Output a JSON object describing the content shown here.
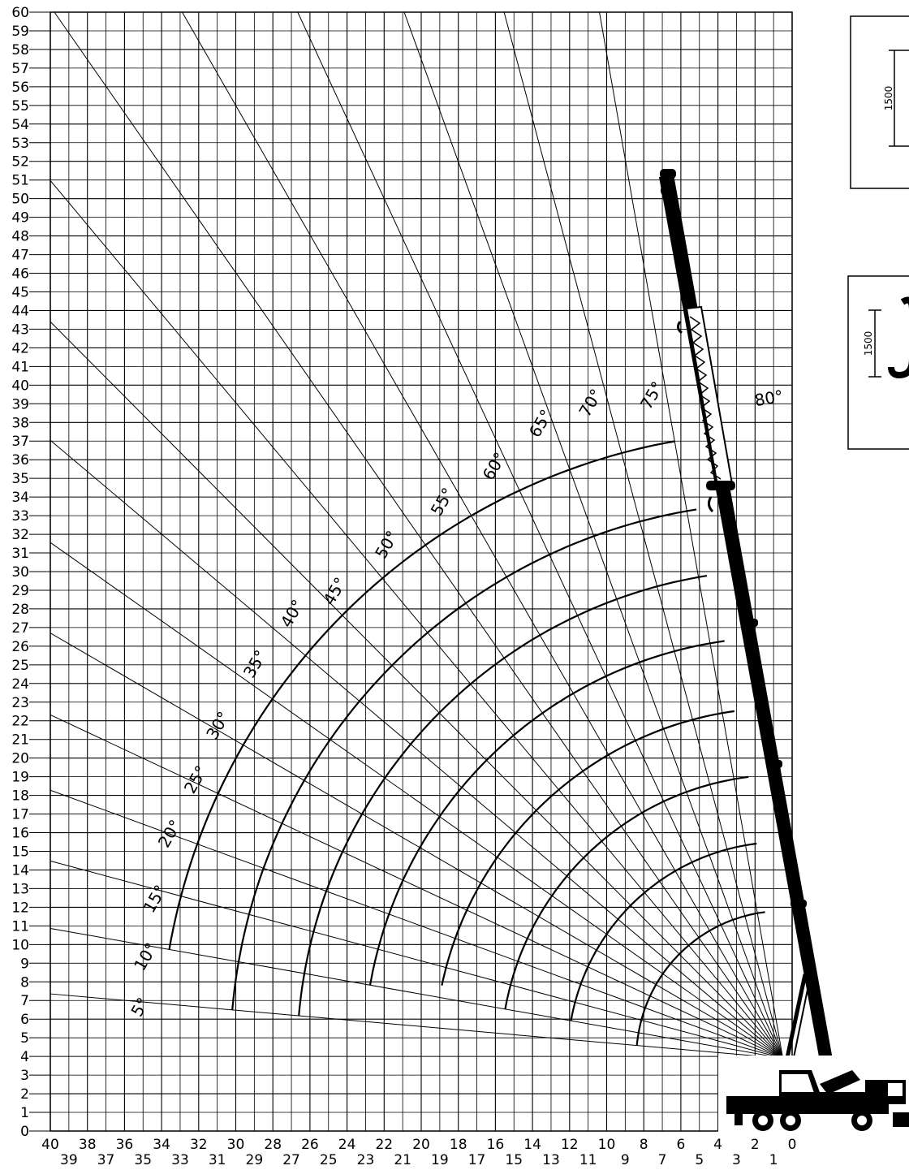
{
  "chart_data": {
    "type": "line",
    "xlim": [
      40,
      0
    ],
    "ylim": [
      0,
      60
    ],
    "grid": true,
    "x_ticks": [
      40,
      39,
      38,
      37,
      36,
      35,
      34,
      33,
      32,
      31,
      30,
      29,
      28,
      27,
      26,
      25,
      24,
      23,
      22,
      21,
      20,
      19,
      18,
      17,
      16,
      15,
      14,
      13,
      12,
      11,
      10,
      9,
      8,
      7,
      6,
      5,
      4,
      3,
      2,
      1,
      0
    ],
    "y_ticks": [
      0,
      1,
      2,
      3,
      4,
      5,
      6,
      7,
      8,
      9,
      10,
      11,
      12,
      13,
      14,
      15,
      16,
      17,
      18,
      19,
      20,
      21,
      22,
      23,
      24,
      25,
      26,
      27,
      28,
      29,
      30,
      31,
      32,
      33,
      34,
      35,
      36,
      37,
      38,
      39,
      40,
      41,
      42,
      43,
      44,
      45,
      46,
      47,
      48,
      49,
      50,
      51,
      52,
      53,
      54,
      55,
      56,
      57,
      58,
      59,
      60
    ],
    "pivot": {
      "x": 0.5,
      "y": 3.9
    },
    "angle_lines": [
      {
        "label": "5°",
        "angle": 5,
        "label_x": 34.9,
        "label_y": 6.5
      },
      {
        "label": "10°",
        "angle": 10,
        "label_x": 34.6,
        "label_y": 9.2
      },
      {
        "label": "15°",
        "angle": 15,
        "label_x": 34.1,
        "label_y": 12.3
      },
      {
        "label": "20°",
        "angle": 20,
        "label_x": 33.3,
        "label_y": 15.8
      },
      {
        "label": "25°",
        "angle": 25,
        "label_x": 31.9,
        "label_y": 18.7
      },
      {
        "label": "30°",
        "angle": 30,
        "label_x": 30.7,
        "label_y": 21.6
      },
      {
        "label": "35°",
        "angle": 35,
        "label_x": 28.7,
        "label_y": 24.9
      },
      {
        "label": "40°",
        "angle": 40,
        "label_x": 26.7,
        "label_y": 27.6
      },
      {
        "label": "45°",
        "angle": 45,
        "label_x": 24.4,
        "label_y": 28.8
      },
      {
        "label": "50°",
        "angle": 50,
        "label_x": 21.6,
        "label_y": 31.3
      },
      {
        "label": "55°",
        "angle": 55,
        "label_x": 18.6,
        "label_y": 33.6
      },
      {
        "label": "60°",
        "angle": 60,
        "label_x": 15.8,
        "label_y": 35.5
      },
      {
        "label": "65°",
        "angle": 65,
        "label_x": 13.3,
        "label_y": 37.8
      },
      {
        "label": "70°",
        "angle": 70,
        "label_x": 10.6,
        "label_y": 38.9
      },
      {
        "label": "75°",
        "angle": 75,
        "label_x": 7.3,
        "label_y": 39.3
      },
      {
        "label": "80°",
        "angle": 80,
        "label_x": 1.2,
        "label_y": 39.0
      }
    ],
    "boom_arcs": [
      {
        "radius": 7.9,
        "start_angle": 5,
        "end_angle": 83
      },
      {
        "radius": 11.6,
        "start_angle": 10,
        "end_angle": 83
      },
      {
        "radius": 15.2,
        "start_angle": 10,
        "end_angle": 83
      },
      {
        "radius": 18.8,
        "start_angle": 12,
        "end_angle": 82
      },
      {
        "radius": 22.6,
        "start_angle": 10,
        "end_angle": 82
      },
      {
        "radius": 26.2,
        "start_angle": 5,
        "end_angle": 81
      },
      {
        "radius": 29.8,
        "start_angle": 5,
        "end_angle": 81
      },
      {
        "radius": 33.6,
        "start_angle": 10,
        "end_angle": 80
      }
    ]
  },
  "insets": [
    {
      "dimension": "1500"
    },
    {
      "dimension": "1500"
    }
  ]
}
